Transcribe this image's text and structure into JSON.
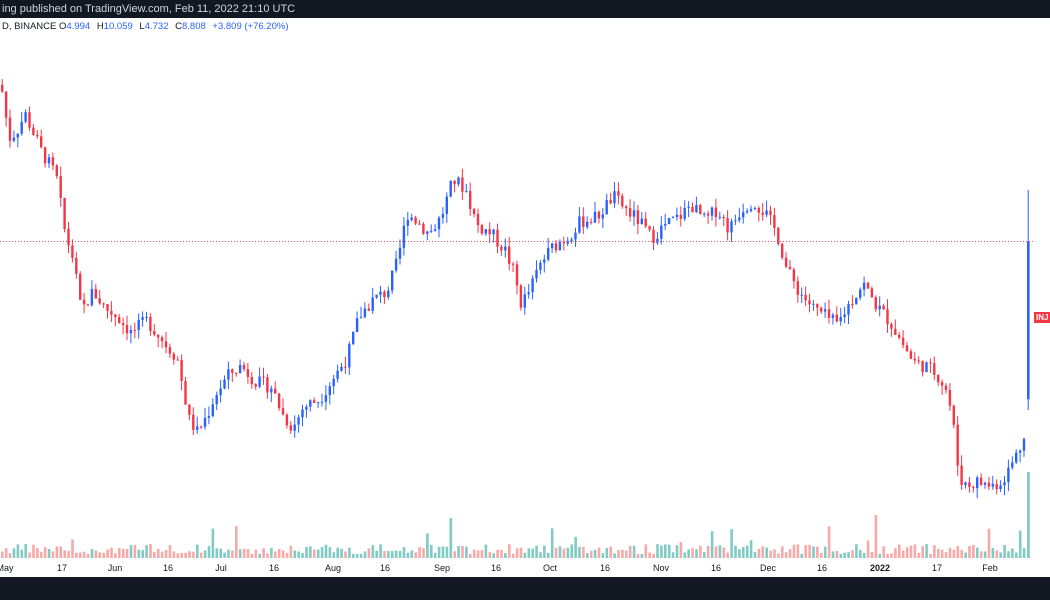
{
  "header": {
    "caption": "ing published on TradingView.com, Feb 11, 2022 21:10 UTC"
  },
  "legend": {
    "symbol": "D, BINANCE",
    "open_label": "O",
    "open": "4.994",
    "high_label": "H",
    "high": "10.059",
    "low_label": "L",
    "low": "4.732",
    "close_label": "C",
    "close": "8.808",
    "change": "+3.809 (+76.20%)"
  },
  "price_tag": "INJ",
  "colors": {
    "up": "#2962ff",
    "down": "#f23645",
    "vol_up": "#80cbc4",
    "vol_down": "#f7a9a7",
    "last_line": "#f23645"
  },
  "chart_data": {
    "type": "candlestick",
    "title": "",
    "xlabel": "",
    "ylabel": "",
    "x_ticks": [
      "May",
      "17",
      "Jun",
      "16",
      "Jul",
      "16",
      "Aug",
      "16",
      "Sep",
      "16",
      "Oct",
      "16",
      "Nov",
      "16",
      "Dec",
      "16",
      "2022",
      "17",
      "Feb"
    ],
    "last_close": 8.808,
    "current_candle": {
      "open": 4.994,
      "high": 10.059,
      "low": 4.732,
      "close": 8.808
    },
    "approx_close_path": [
      [
        0,
        12.6
      ],
      [
        8,
        11.3
      ],
      [
        16,
        11.5
      ],
      [
        24,
        11.9
      ],
      [
        40,
        11.0
      ],
      [
        55,
        10.4
      ],
      [
        64,
        9.0
      ],
      [
        72,
        8.4
      ],
      [
        80,
        7.1
      ],
      [
        92,
        7.6
      ],
      [
        104,
        7.2
      ],
      [
        116,
        7.0
      ],
      [
        130,
        6.6
      ],
      [
        146,
        6.9
      ],
      [
        162,
        6.4
      ],
      [
        176,
        6.0
      ],
      [
        188,
        4.5
      ],
      [
        196,
        4.2
      ],
      [
        206,
        4.6
      ],
      [
        214,
        5.1
      ],
      [
        228,
        5.6
      ],
      [
        240,
        5.8
      ],
      [
        256,
        5.4
      ],
      [
        270,
        5.3
      ],
      [
        282,
        4.6
      ],
      [
        292,
        4.3
      ],
      [
        302,
        4.8
      ],
      [
        318,
        5.0
      ],
      [
        332,
        5.5
      ],
      [
        346,
        6.0
      ],
      [
        358,
        7.0
      ],
      [
        372,
        7.4
      ],
      [
        386,
        7.6
      ],
      [
        396,
        8.3
      ],
      [
        406,
        9.5
      ],
      [
        416,
        9.3
      ],
      [
        428,
        9.0
      ],
      [
        440,
        9.4
      ],
      [
        452,
        10.3
      ],
      [
        464,
        10.1
      ],
      [
        476,
        9.2
      ],
      [
        490,
        9.0
      ],
      [
        504,
        8.6
      ],
      [
        512,
        8.1
      ],
      [
        520,
        7.3
      ],
      [
        528,
        7.6
      ],
      [
        540,
        8.3
      ],
      [
        552,
        8.7
      ],
      [
        566,
        8.9
      ],
      [
        580,
        9.3
      ],
      [
        596,
        9.4
      ],
      [
        612,
        9.9
      ],
      [
        624,
        9.6
      ],
      [
        638,
        9.3
      ],
      [
        650,
        8.9
      ],
      [
        664,
        9.2
      ],
      [
        678,
        9.4
      ],
      [
        690,
        9.7
      ],
      [
        704,
        9.3
      ],
      [
        716,
        9.6
      ],
      [
        728,
        9.1
      ],
      [
        740,
        9.6
      ],
      [
        752,
        9.8
      ],
      [
        764,
        9.5
      ],
      [
        776,
        9.0
      ],
      [
        786,
        8.1
      ],
      [
        798,
        7.6
      ],
      [
        812,
        7.2
      ],
      [
        824,
        7.0
      ],
      [
        836,
        6.8
      ],
      [
        848,
        7.3
      ],
      [
        862,
        7.8
      ],
      [
        874,
        7.3
      ],
      [
        888,
        6.9
      ],
      [
        900,
        6.4
      ],
      [
        912,
        5.9
      ],
      [
        924,
        5.8
      ],
      [
        936,
        5.6
      ],
      [
        946,
        5.2
      ],
      [
        952,
        4.4
      ],
      [
        958,
        3.1
      ],
      [
        966,
        2.9
      ],
      [
        976,
        3.0
      ],
      [
        990,
        2.9
      ],
      [
        1000,
        3.0
      ],
      [
        1008,
        3.3
      ],
      [
        1016,
        3.7
      ],
      [
        1022,
        4.0
      ],
      [
        1026,
        5.0
      ]
    ]
  }
}
